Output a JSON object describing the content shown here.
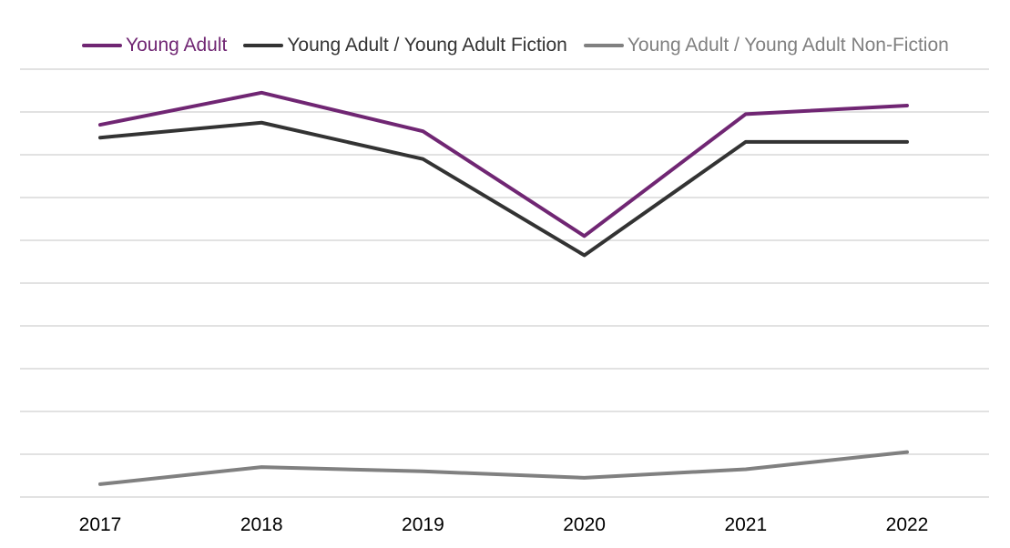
{
  "chart_data": {
    "type": "line",
    "title": "",
    "xlabel": "",
    "ylabel": "",
    "categories": [
      "2017",
      "2018",
      "2019",
      "2020",
      "2021",
      "2022"
    ],
    "ylim": [
      0,
      10
    ],
    "grid": true,
    "y_ticks_shown": false,
    "legend_position": "top",
    "series": [
      {
        "name": "Young Adult",
        "color": "#702673",
        "values": [
          8.7,
          9.45,
          8.55,
          6.1,
          8.95,
          9.15
        ]
      },
      {
        "name": "Young Adult / Young Adult Fiction",
        "color": "#333333",
        "values": [
          8.4,
          8.75,
          7.9,
          5.65,
          8.3,
          8.3
        ]
      },
      {
        "name": "Young Adult / Young Adult Non-Fiction",
        "color": "#808080",
        "values": [
          0.3,
          0.7,
          0.6,
          0.45,
          0.65,
          1.05
        ]
      }
    ]
  }
}
